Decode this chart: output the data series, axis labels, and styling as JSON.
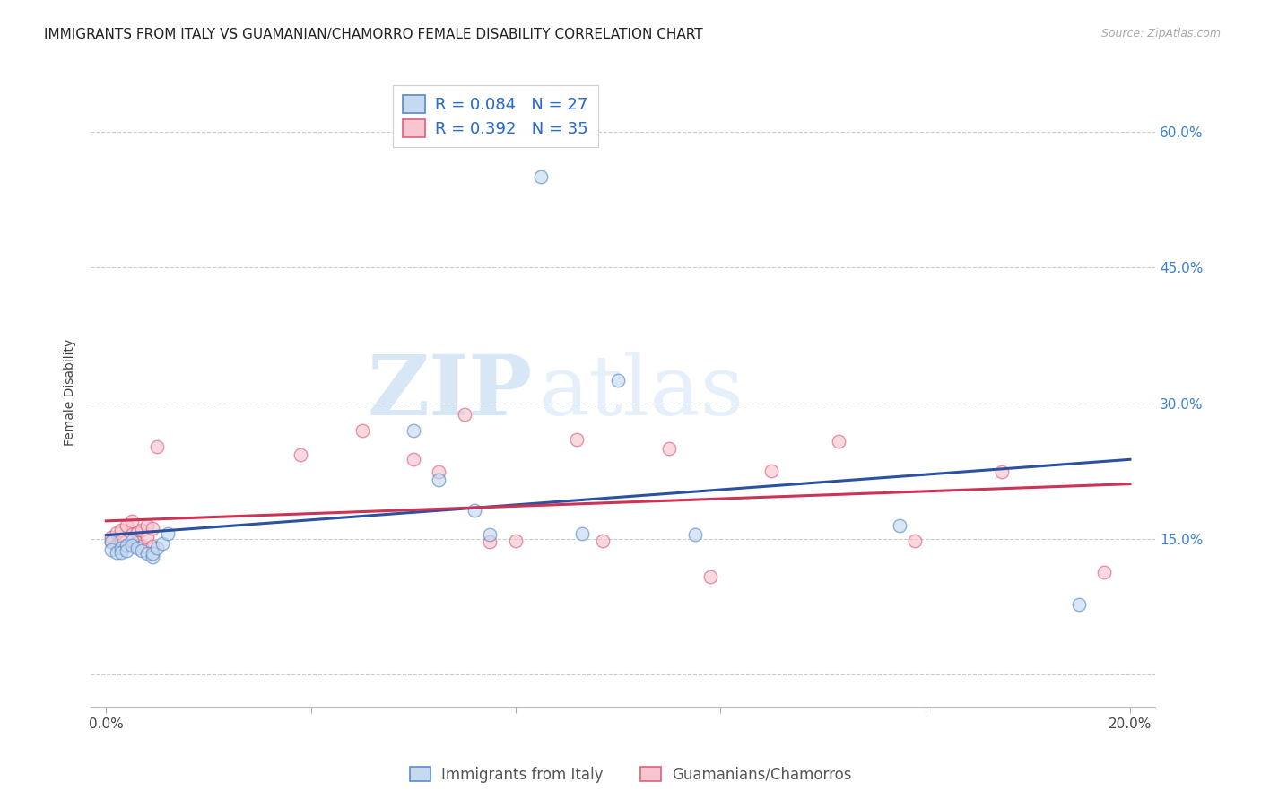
{
  "title": "IMMIGRANTS FROM ITALY VS GUAMANIAN/CHAMORRO FEMALE DISABILITY CORRELATION CHART",
  "source": "Source: ZipAtlas.com",
  "ylabel": "Female Disability",
  "series1_label": "Immigrants from Italy",
  "series2_label": "Guamanians/Chamorros",
  "series1_R": "0.084",
  "series1_N": "27",
  "series2_R": "0.392",
  "series2_N": "35",
  "series1_color": "#c5d9f0",
  "series1_edge_color": "#5b8cc8",
  "series1_line_color": "#2a52a0",
  "series2_color": "#f7c5d0",
  "series2_edge_color": "#e06080",
  "series2_line_color": "#cc3355",
  "watermark_zip": "ZIP",
  "watermark_atlas": "atlas",
  "ytick_positions": [
    0.0,
    0.15,
    0.3,
    0.45,
    0.6
  ],
  "ytick_labels": [
    "",
    "15.0%",
    "30.0%",
    "45.0%",
    "60.0%"
  ],
  "xtick_positions": [
    0.0,
    0.04,
    0.08,
    0.12,
    0.16,
    0.2
  ],
  "xtick_labels": [
    "0.0%",
    "",
    "",
    "",
    "",
    "20.0%"
  ],
  "xlim": [
    -0.003,
    0.205
  ],
  "ylim": [
    -0.035,
    0.66
  ],
  "blue_x": [
    0.001,
    0.001,
    0.002,
    0.003,
    0.003,
    0.004,
    0.004,
    0.005,
    0.005,
    0.006,
    0.007,
    0.008,
    0.009,
    0.009,
    0.01,
    0.011,
    0.012,
    0.06,
    0.065,
    0.072,
    0.075,
    0.085,
    0.093,
    0.1,
    0.115,
    0.155,
    0.19
  ],
  "blue_y": [
    0.147,
    0.138,
    0.135,
    0.14,
    0.135,
    0.143,
    0.137,
    0.148,
    0.143,
    0.14,
    0.137,
    0.134,
    0.13,
    0.134,
    0.14,
    0.145,
    0.156,
    0.27,
    0.215,
    0.182,
    0.155,
    0.55,
    0.156,
    0.325,
    0.155,
    0.165,
    0.078
  ],
  "pink_x": [
    0.001,
    0.001,
    0.002,
    0.002,
    0.003,
    0.003,
    0.004,
    0.004,
    0.005,
    0.005,
    0.006,
    0.006,
    0.007,
    0.007,
    0.008,
    0.008,
    0.009,
    0.009,
    0.01,
    0.038,
    0.05,
    0.06,
    0.065,
    0.07,
    0.075,
    0.08,
    0.092,
    0.097,
    0.11,
    0.118,
    0.13,
    0.143,
    0.158,
    0.175,
    0.195
  ],
  "pink_y": [
    0.147,
    0.152,
    0.157,
    0.143,
    0.16,
    0.148,
    0.165,
    0.142,
    0.17,
    0.155,
    0.157,
    0.146,
    0.16,
    0.142,
    0.165,
    0.152,
    0.162,
    0.142,
    0.252,
    0.243,
    0.27,
    0.238,
    0.224,
    0.288,
    0.147,
    0.148,
    0.26,
    0.148,
    0.25,
    0.108,
    0.225,
    0.258,
    0.148,
    0.224,
    0.113
  ],
  "scatter_size": 110,
  "scatter_alpha": 0.65,
  "scatter_lw": 1.0,
  "background_color": "#ffffff",
  "grid_color": "#cccccc",
  "grid_lw": 0.8,
  "trend_lw": 2.2
}
